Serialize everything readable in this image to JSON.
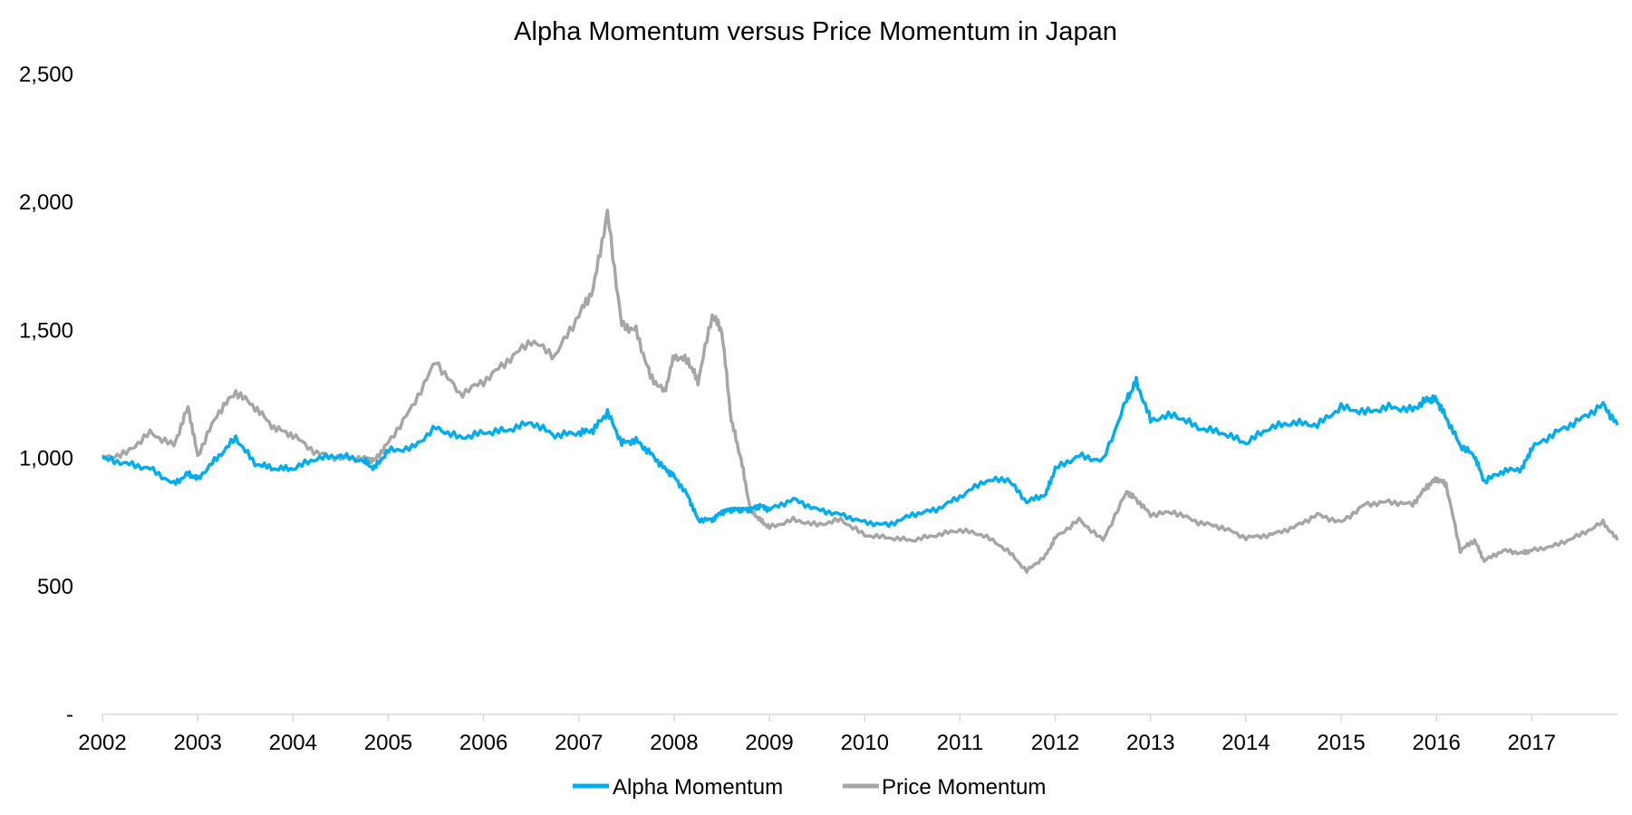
{
  "chart_data": {
    "type": "line",
    "title": "Alpha Momentum versus Price Momentum in Japan",
    "xlabel": "",
    "ylabel": "",
    "x_ticks": [
      "2002",
      "2003",
      "2004",
      "2005",
      "2006",
      "2007",
      "2008",
      "2009",
      "2010",
      "2011",
      "2012",
      "2013",
      "2014",
      "2015",
      "2016",
      "2017"
    ],
    "y_ticks": [
      {
        "value": 0,
        "label": "-"
      },
      {
        "value": 500,
        "label": "500"
      },
      {
        "value": 1000,
        "label": "1,000"
      },
      {
        "value": 1500,
        "label": "1,500"
      },
      {
        "value": 2000,
        "label": "2,000"
      },
      {
        "value": 2500,
        "label": "2,500"
      }
    ],
    "xlim": [
      2002.0,
      2017.9
    ],
    "ylim": [
      0,
      2500
    ],
    "grid": false,
    "legend_position": "bottom-center",
    "x": [
      2002.0,
      2002.25,
      2002.5,
      2002.75,
      2002.9,
      2003.0,
      2003.2,
      2003.4,
      2003.6,
      2003.8,
      2004.0,
      2004.25,
      2004.5,
      2004.75,
      2004.85,
      2005.0,
      2005.25,
      2005.5,
      2005.75,
      2006.0,
      2006.25,
      2006.5,
      2006.75,
      2007.0,
      2007.15,
      2007.3,
      2007.45,
      2007.6,
      2007.75,
      2007.9,
      2008.0,
      2008.15,
      2008.25,
      2008.4,
      2008.5,
      2008.6,
      2008.7,
      2008.8,
      2008.9,
      2009.0,
      2009.25,
      2009.5,
      2009.75,
      2010.0,
      2010.25,
      2010.5,
      2010.75,
      2011.0,
      2011.25,
      2011.5,
      2011.7,
      2011.9,
      2012.0,
      2012.25,
      2012.5,
      2012.75,
      2012.85,
      2013.0,
      2013.25,
      2013.5,
      2013.75,
      2014.0,
      2014.25,
      2014.5,
      2014.75,
      2015.0,
      2015.25,
      2015.5,
      2015.75,
      2015.9,
      2016.0,
      2016.1,
      2016.25,
      2016.4,
      2016.5,
      2016.7,
      2016.9,
      2017.0,
      2017.25,
      2017.5,
      2017.75,
      2017.9
    ],
    "series": [
      {
        "name": "Alpha Momentum",
        "color": "#00aeef",
        "values": [
          1000,
          980,
          960,
          900,
          940,
          920,
          1000,
          1080,
          980,
          960,
          960,
          1000,
          1010,
          990,
          960,
          1030,
          1040,
          1120,
          1080,
          1100,
          1110,
          1140,
          1090,
          1100,
          1110,
          1180,
          1060,
          1070,
          1020,
          960,
          930,
          850,
          760,
          760,
          790,
          800,
          800,
          800,
          815,
          800,
          840,
          800,
          780,
          750,
          740,
          780,
          800,
          850,
          910,
          920,
          830,
          860,
          960,
          1010,
          990,
          1230,
          1300,
          1150,
          1170,
          1120,
          1100,
          1060,
          1120,
          1140,
          1130,
          1200,
          1180,
          1200,
          1190,
          1230,
          1230,
          1160,
          1050,
          1010,
          910,
          950,
          960,
          1040,
          1100,
          1150,
          1210,
          1130
        ]
      },
      {
        "name": "Price Momentum",
        "color": "#a6a6a6",
        "values": [
          1000,
          1020,
          1100,
          1050,
          1200,
          1010,
          1170,
          1260,
          1200,
          1120,
          1090,
          1020,
          1000,
          1000,
          990,
          1060,
          1200,
          1380,
          1250,
          1300,
          1380,
          1460,
          1400,
          1560,
          1660,
          1960,
          1520,
          1500,
          1320,
          1260,
          1400,
          1380,
          1300,
          1560,
          1500,
          1150,
          1000,
          800,
          760,
          730,
          760,
          740,
          760,
          700,
          690,
          680,
          700,
          720,
          700,
          640,
          560,
          620,
          690,
          760,
          680,
          870,
          840,
          780,
          790,
          750,
          730,
          690,
          700,
          730,
          780,
          750,
          820,
          830,
          820,
          890,
          920,
          900,
          640,
          680,
          600,
          640,
          630,
          640,
          660,
          700,
          750,
          680
        ]
      }
    ],
    "legend": [
      {
        "label": "Alpha Momentum",
        "color": "#00aeef"
      },
      {
        "label": "Price Momentum",
        "color": "#a6a6a6"
      }
    ]
  }
}
